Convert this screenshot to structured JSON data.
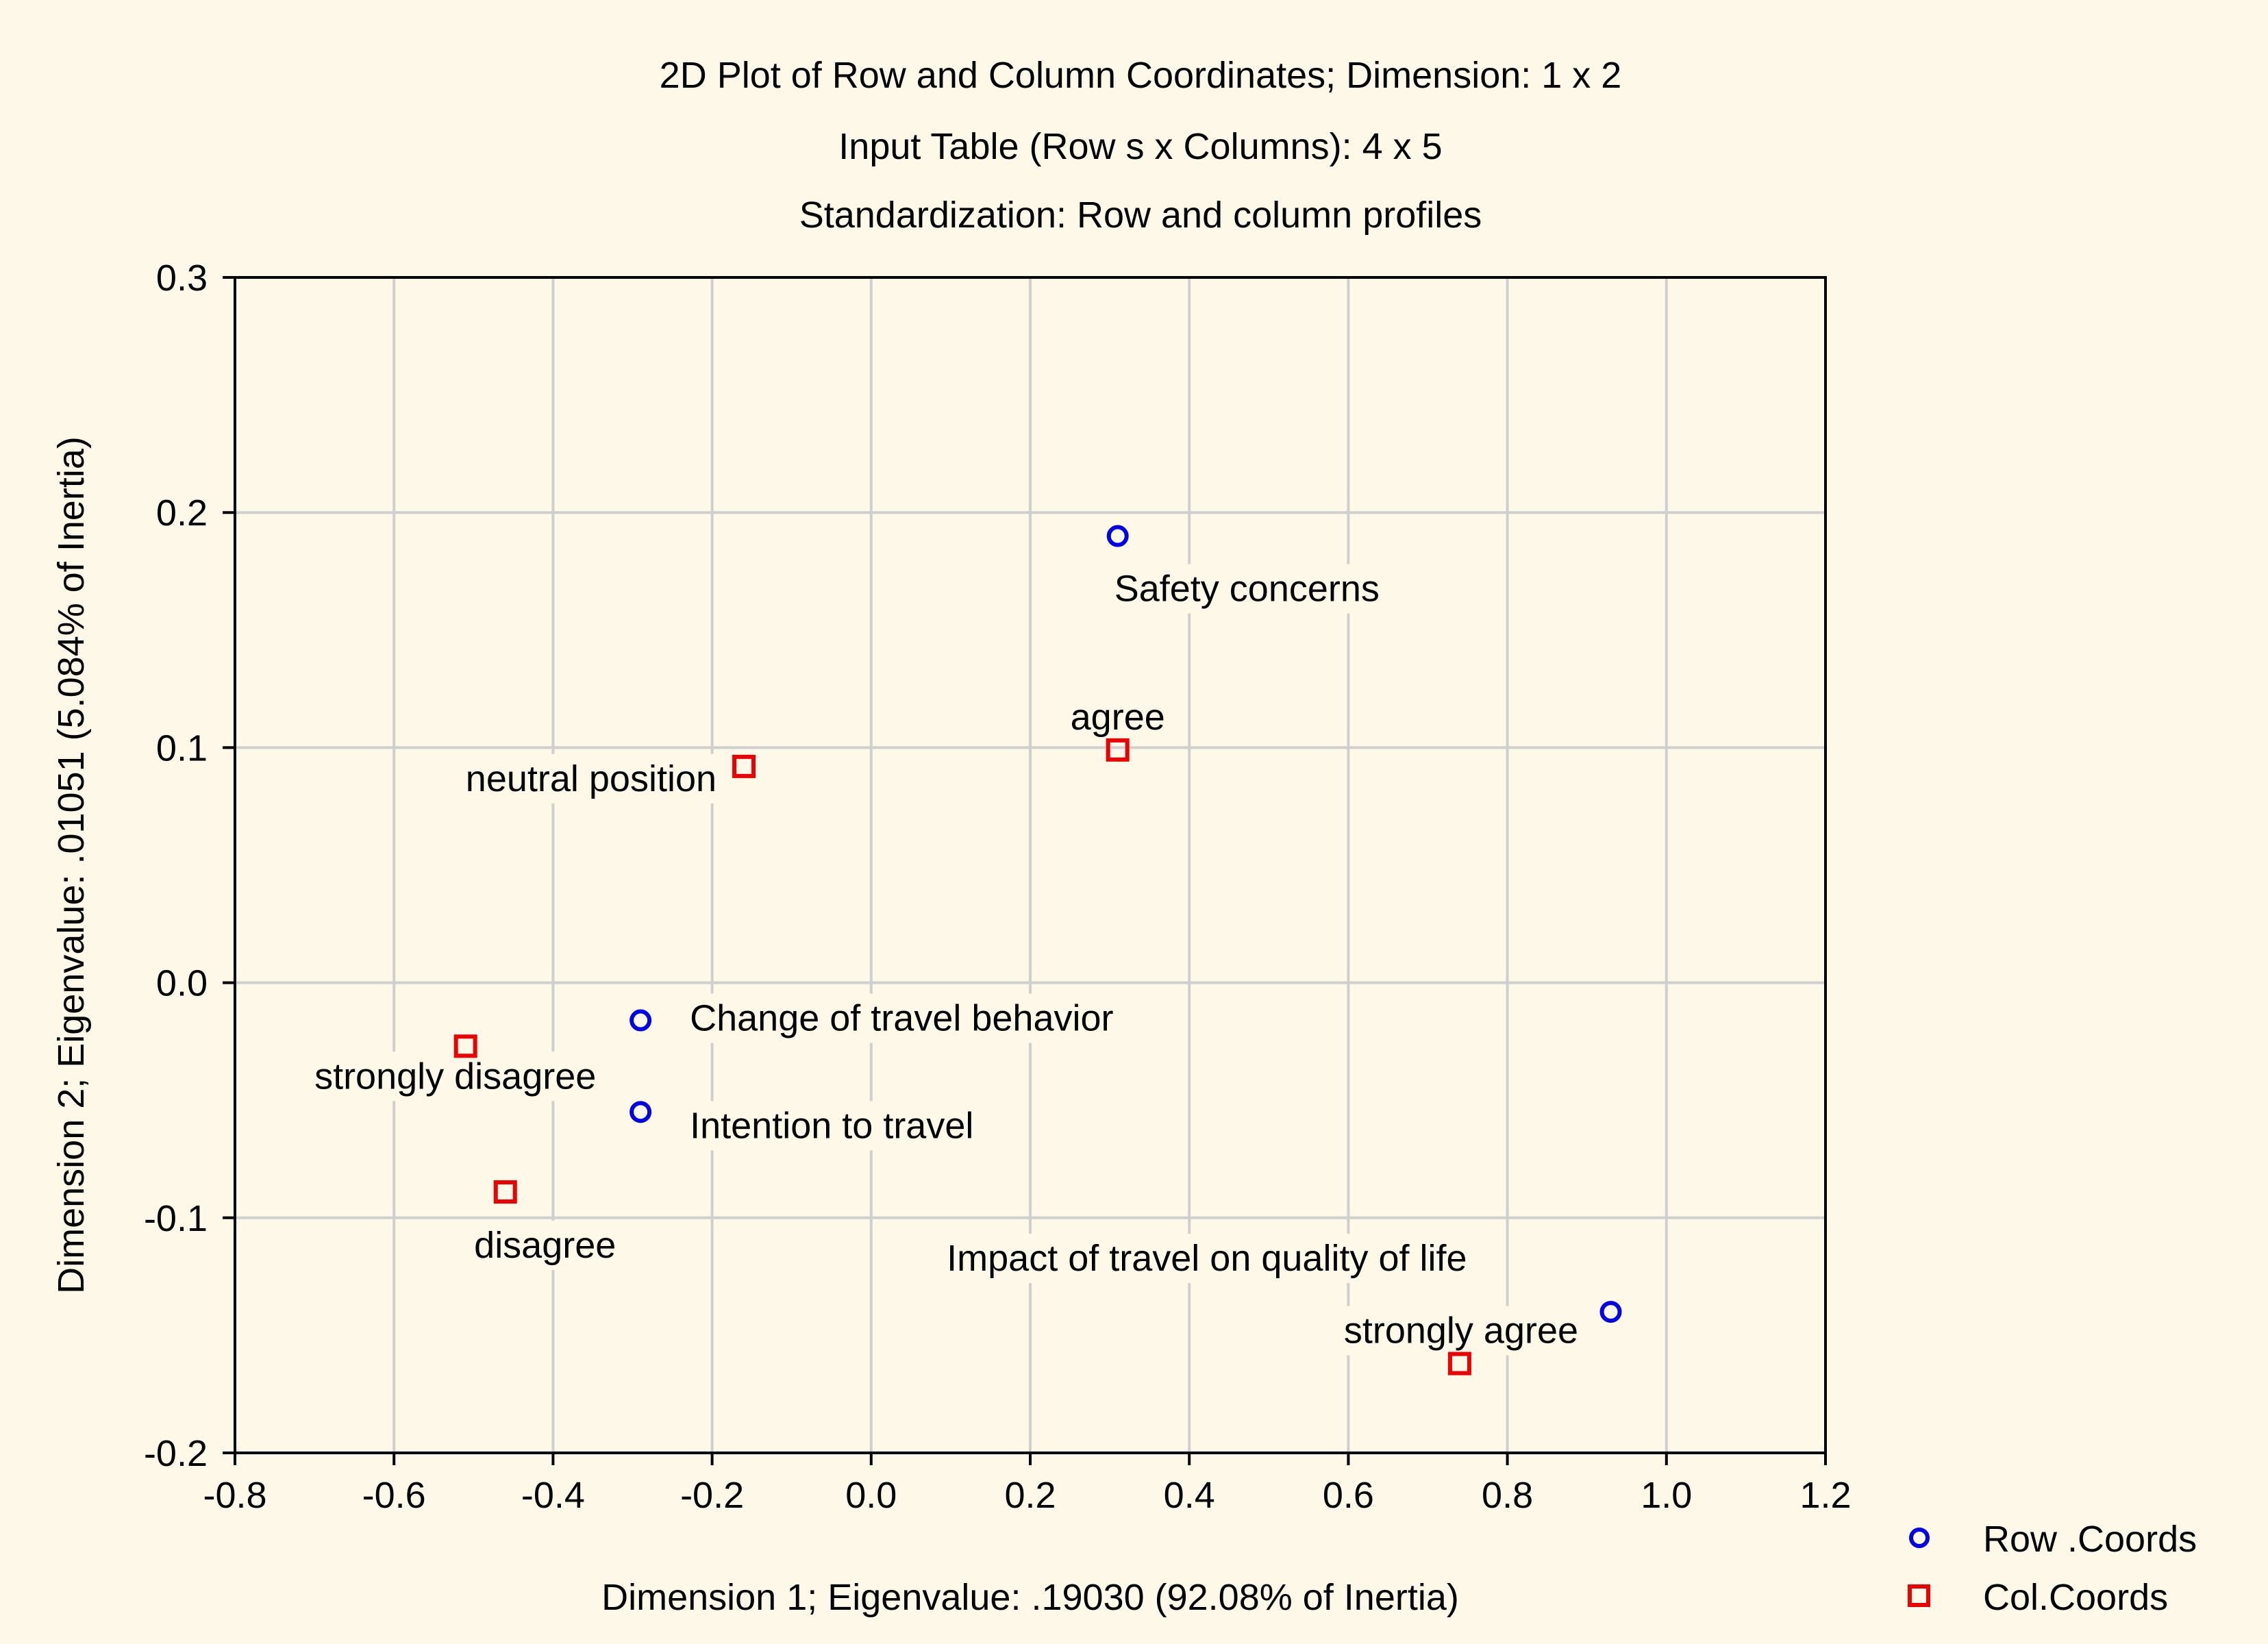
{
  "chart_data": {
    "type": "scatter",
    "title": "2D Plot of Row  and Column Coordinates; Dimension: 1 x 2",
    "subtitle": "Input Table (Row s x Columns): 4 x 5",
    "subtitle2": "Standardization: Row  and column profiles",
    "xlabel": "Dimension 1; Eigenvalue: .19030 (92.08% of Inertia)",
    "ylabel": "Dimension 2; Eigenvalue: .01051 (5.084% of Inertia)",
    "xlim": [
      -0.8,
      1.2
    ],
    "ylim": [
      -0.2,
      0.3
    ],
    "xticks": [
      -0.8,
      -0.6,
      -0.4,
      -0.2,
      0.0,
      0.2,
      0.4,
      0.6,
      0.8,
      1.0,
      1.2
    ],
    "xtick_labels": [
      "-0.8",
      "-0.6",
      "-0.4",
      "-0.2",
      "0.0",
      "0.2",
      "0.4",
      "0.6",
      "0.8",
      "1.0",
      "1.2"
    ],
    "yticks": [
      -0.2,
      -0.1,
      0.0,
      0.1,
      0.2,
      0.3
    ],
    "ytick_labels": [
      "-0.2",
      "-0.1",
      "0.0",
      "0.1",
      "0.2",
      "0.3"
    ],
    "grid": true,
    "legend_position": "bottom-right-outside",
    "series": [
      {
        "name": "Row .Coords",
        "marker": "circle",
        "color": "#0000ee",
        "points": [
          {
            "label": "Safety concerns",
            "x": 0.31,
            "y": 0.19
          },
          {
            "label": "Change of travel behavior",
            "x": -0.29,
            "y": -0.016
          },
          {
            "label": "Intention to travel",
            "x": -0.29,
            "y": -0.055
          },
          {
            "label": "Impact of travel on quality of life",
            "x": 0.93,
            "y": -0.14
          }
        ]
      },
      {
        "name": "Col.Coords",
        "marker": "square",
        "color": "#ee0000",
        "points": [
          {
            "label": "agree",
            "x": 0.31,
            "y": 0.099
          },
          {
            "label": "neutral position",
            "x": -0.16,
            "y": 0.092
          },
          {
            "label": "strongly disagree",
            "x": -0.51,
            "y": -0.027
          },
          {
            "label": "disagree",
            "x": -0.46,
            "y": -0.089
          },
          {
            "label": "strongly agree",
            "x": 0.74,
            "y": -0.162
          }
        ]
      }
    ]
  }
}
